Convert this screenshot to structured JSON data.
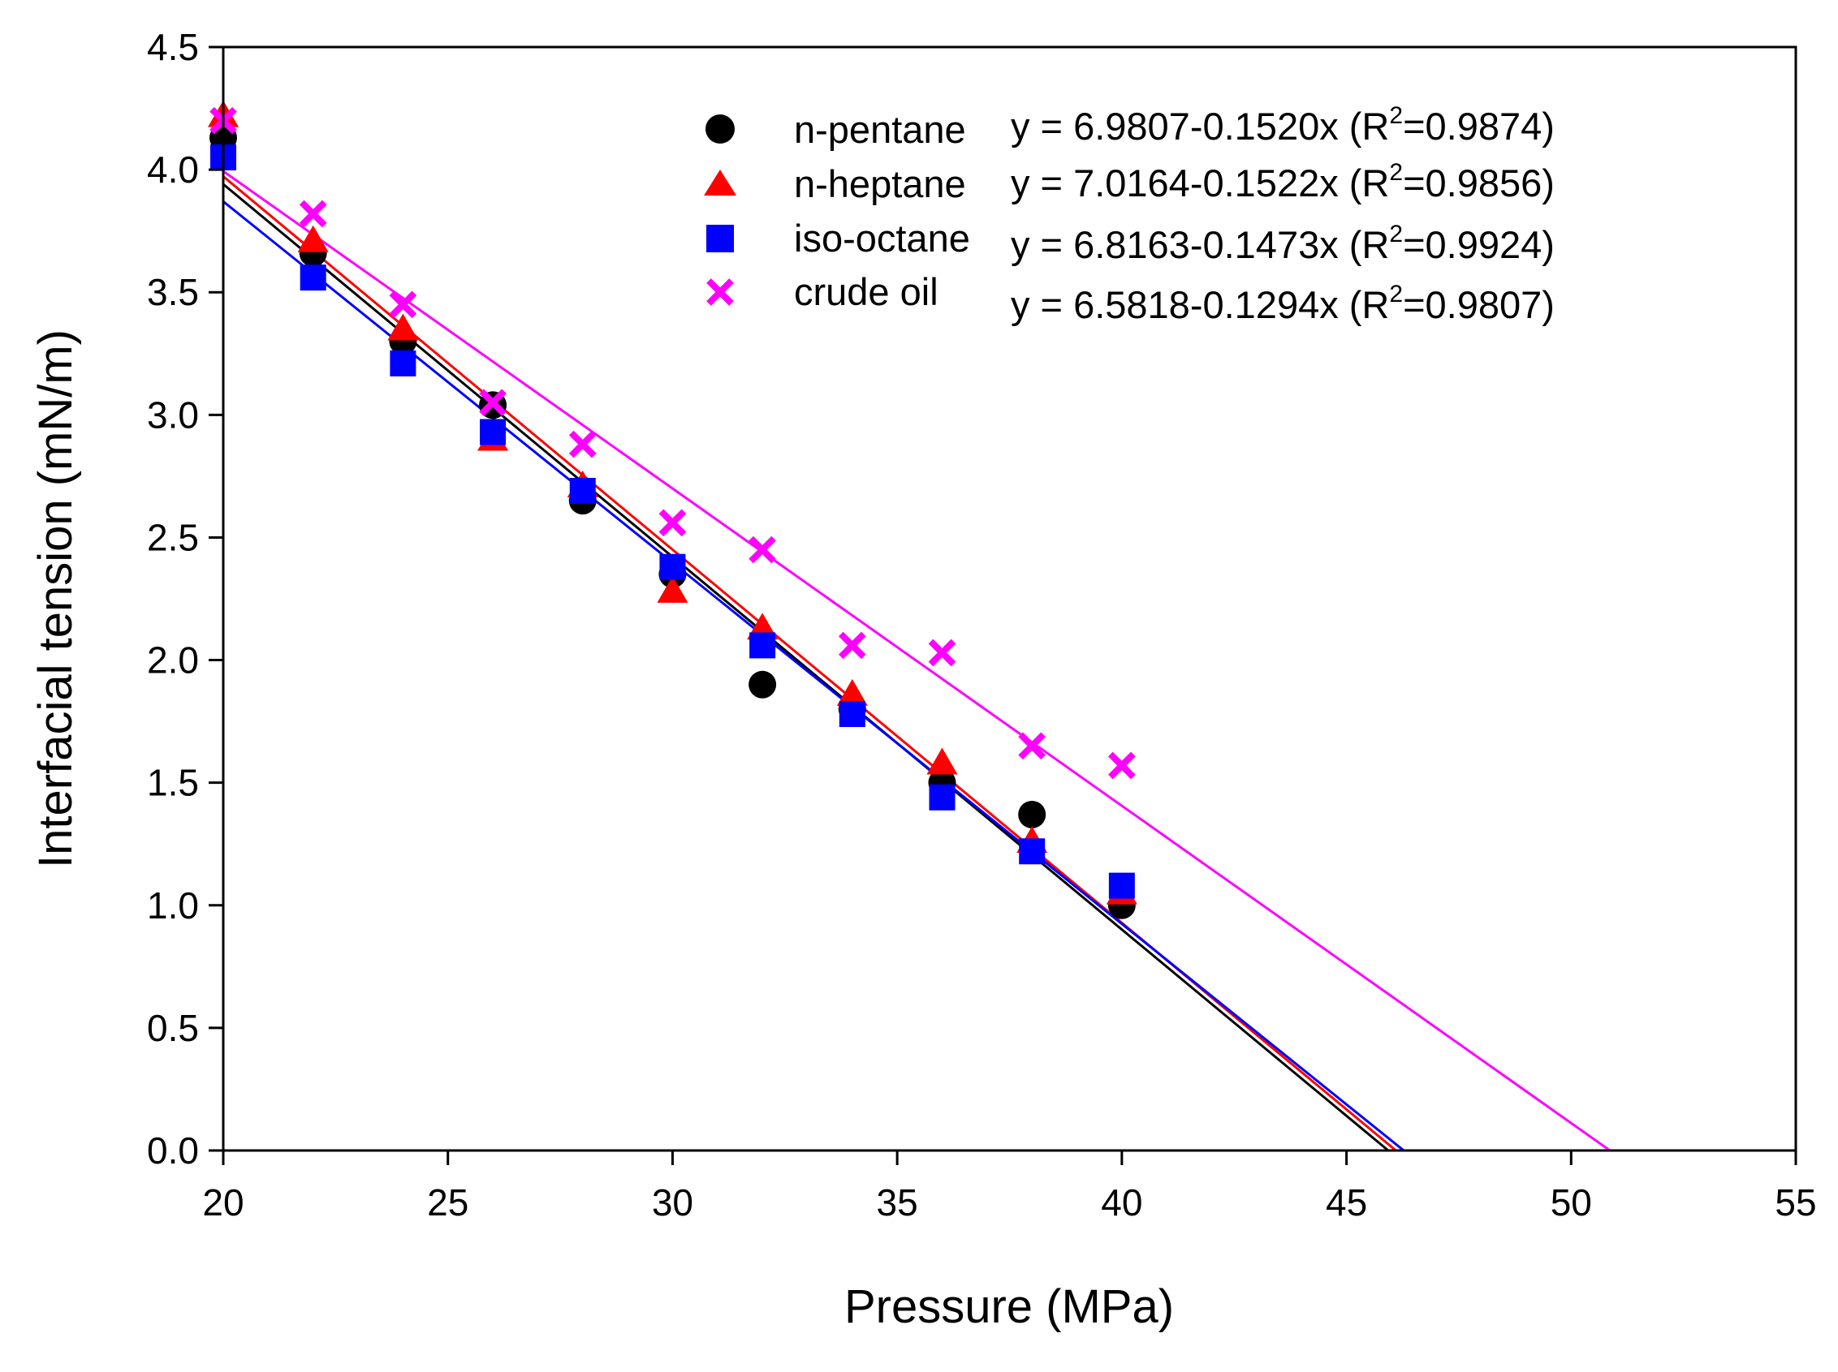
{
  "chart_data": {
    "type": "scatter",
    "title": "",
    "xlabel": "Pressure (MPa)",
    "ylabel": "Interfacial tension (mN/m)",
    "xlim": [
      20,
      55
    ],
    "ylim": [
      0.0,
      4.5
    ],
    "x_ticks": [
      20,
      25,
      30,
      35,
      40,
      45,
      50,
      55
    ],
    "x_tick_labels": [
      "20",
      "25",
      "30",
      "35",
      "40",
      "45",
      "50",
      "55"
    ],
    "y_ticks": [
      0.0,
      0.5,
      1.0,
      1.5,
      2.0,
      2.5,
      3.0,
      3.5,
      4.0,
      4.5
    ],
    "y_tick_labels": [
      "0.0",
      "0.5",
      "1.0",
      "1.5",
      "2.0",
      "2.5",
      "3.0",
      "3.5",
      "4.0",
      "4.5"
    ],
    "grid": false,
    "legend_position": "top-right",
    "series": [
      {
        "name": "n-pentane",
        "marker": "circle",
        "color": "#000000",
        "x": [
          20,
          22,
          24,
          26,
          28,
          30,
          32,
          34,
          36,
          38,
          40
        ],
        "y": [
          4.13,
          3.66,
          3.3,
          3.04,
          2.65,
          2.35,
          1.9,
          1.8,
          1.5,
          1.37,
          1.0
        ],
        "fit": {
          "intercept": 6.9807,
          "slope": -0.152,
          "r2": "0.9874",
          "x_end": 45.93
        },
        "equation_prefix": "y = 6.9807-0.1520x (R",
        "equation_suffix": "=0.9874)"
      },
      {
        "name": "n-heptane",
        "marker": "triangle",
        "color": "#ff0000",
        "x": [
          20,
          22,
          24,
          26,
          28,
          30,
          32,
          34,
          36,
          38,
          40
        ],
        "y": [
          4.22,
          3.71,
          3.35,
          2.9,
          2.71,
          2.28,
          2.13,
          1.86,
          1.58,
          1.26,
          1.05
        ],
        "fit": {
          "intercept": 7.0164,
          "slope": -0.1522,
          "r2": "0.9856",
          "x_end": 46.1
        },
        "equation_prefix": "y = 7.0164-0.1522x (R",
        "equation_suffix": "=0.9856)"
      },
      {
        "name": "iso-octane",
        "marker": "square",
        "color": "#0000ff",
        "x": [
          20,
          22,
          24,
          26,
          28,
          30,
          32,
          34,
          36,
          38,
          40
        ],
        "y": [
          4.05,
          3.56,
          3.21,
          2.93,
          2.69,
          2.38,
          2.06,
          1.78,
          1.44,
          1.22,
          1.08
        ],
        "fit": {
          "intercept": 6.8163,
          "slope": -0.1473,
          "r2": "0.9924",
          "x_end": 46.27
        },
        "equation_prefix": "y = 6.8163-0.1473x (R",
        "equation_suffix": "=0.9924)"
      },
      {
        "name": "crude oil",
        "marker": "x",
        "color": "#ff00ff",
        "x": [
          20,
          22,
          24,
          26,
          28,
          30,
          32,
          34,
          36,
          38,
          40
        ],
        "y": [
          4.2,
          3.82,
          3.45,
          3.05,
          2.88,
          2.56,
          2.45,
          2.06,
          2.03,
          1.65,
          1.57
        ],
        "fit": {
          "intercept": 6.5818,
          "slope": -0.1294,
          "r2": "0.9807",
          "x_end": 50.86
        },
        "equation_prefix": "y = 6.5818-0.1294x (R",
        "equation_suffix": "=0.9807)"
      }
    ],
    "superscript": "2"
  }
}
